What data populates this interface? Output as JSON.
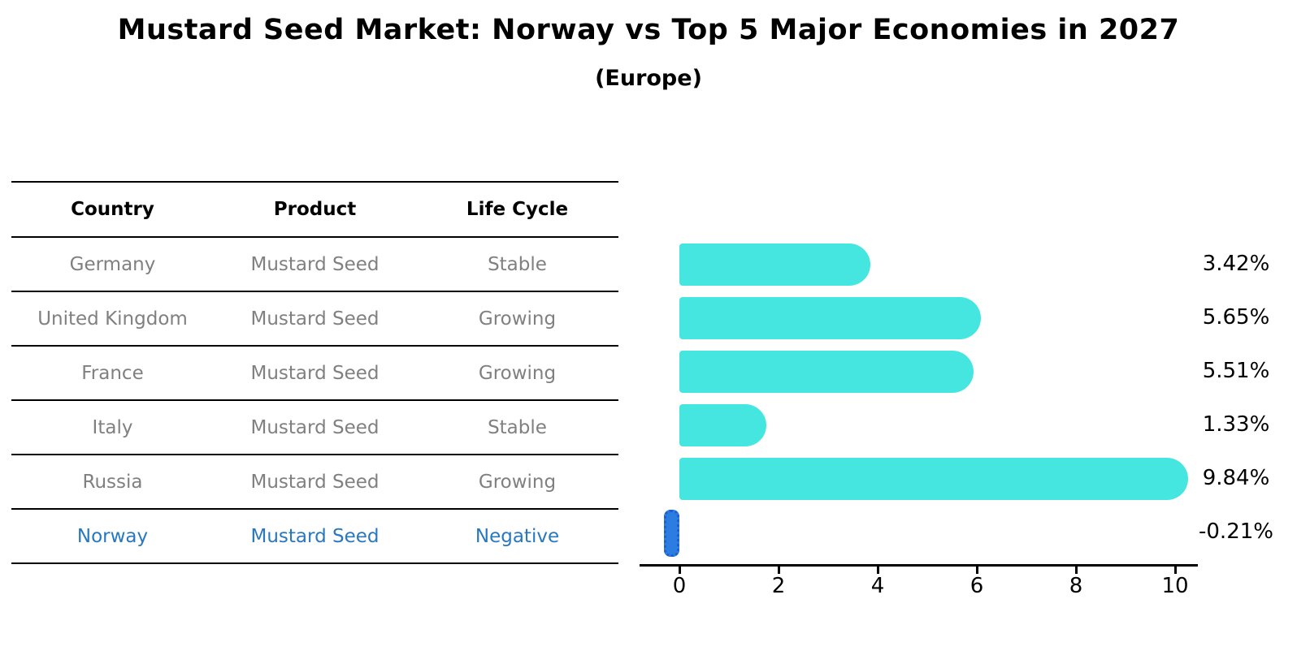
{
  "chart_data": {
    "type": "bar",
    "orientation": "horizontal",
    "title": "Mustard Seed Market: Norway vs Top 5 Major Economies in 2027",
    "subtitle": "(Europe)",
    "categories": [
      "Germany",
      "United Kingdom",
      "France",
      "Italy",
      "Russia",
      "Norway"
    ],
    "values": [
      3.42,
      5.65,
      5.51,
      1.33,
      9.84,
      -0.21
    ],
    "value_labels": [
      "3.42%",
      "5.65%",
      "5.51%",
      "1.33%",
      "9.84%",
      "-0.21%"
    ],
    "x_ticks": [
      0,
      2,
      4,
      6,
      8,
      10
    ],
    "xlim": [
      -0.8,
      10.5
    ],
    "grid": false,
    "legend": false,
    "bar_color": "#45e6e0",
    "highlight_bar_color": "#2b7de1",
    "highlight_bar_edge_color": "#1f5ecf",
    "highlight_text_color": "#2878c0",
    "table_text_color": "#808080"
  },
  "table": {
    "headers": [
      "Country",
      "Product",
      "Life Cycle"
    ],
    "rows": [
      {
        "country": "Germany",
        "product": "Mustard Seed",
        "life_cycle": "Stable",
        "highlight": false
      },
      {
        "country": "United Kingdom",
        "product": "Mustard Seed",
        "life_cycle": "Growing",
        "highlight": false
      },
      {
        "country": "France",
        "product": "Mustard Seed",
        "life_cycle": "Growing",
        "highlight": false
      },
      {
        "country": "Italy",
        "product": "Mustard Seed",
        "life_cycle": "Stable",
        "highlight": false
      },
      {
        "country": "Russia",
        "product": "Mustard Seed",
        "life_cycle": "Growing",
        "highlight": false
      },
      {
        "country": "Norway",
        "product": "Mustard Seed",
        "life_cycle": "Negative",
        "highlight": true
      }
    ]
  }
}
